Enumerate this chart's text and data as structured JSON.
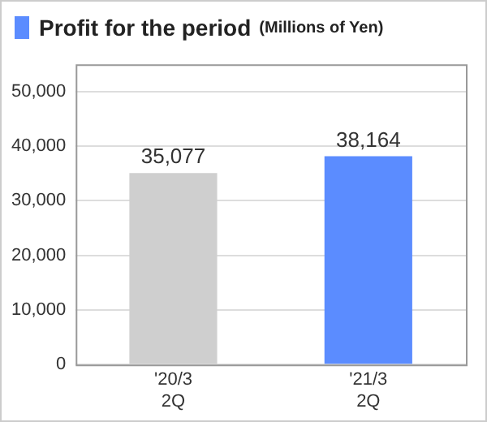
{
  "chart_data": {
    "type": "bar",
    "title": "Profit for the period",
    "subtitle": "(Millions of Yen)",
    "categories": [
      "'20/3\n2Q",
      "'21/3\n2Q"
    ],
    "values": [
      35077,
      38164
    ],
    "colors": [
      "#cfcfcf",
      "#5b8cff"
    ],
    "ylim": [
      0,
      55000
    ],
    "yticks": [
      {
        "value": 0,
        "label": "0"
      },
      {
        "value": 10000,
        "label": "10,000"
      },
      {
        "value": 20000,
        "label": "20,000"
      },
      {
        "value": 30000,
        "label": "30,000"
      },
      {
        "value": 40000,
        "label": "40,000"
      },
      {
        "value": 50000,
        "label": "50,000"
      }
    ],
    "grid": "y",
    "value_labels": [
      "35,077",
      "38,164"
    ]
  }
}
